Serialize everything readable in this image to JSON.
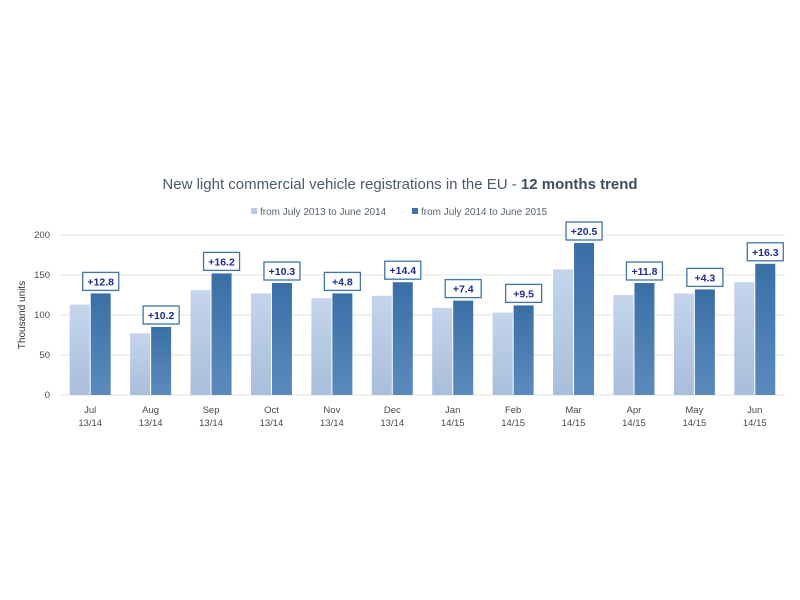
{
  "chart_data": {
    "type": "bar",
    "title": "New light commercial vehicle registrations in the EU - ",
    "title_bold": "12 months trend",
    "ylabel": "Thousand units",
    "ylim": [
      0,
      200
    ],
    "yticks": [
      0,
      50,
      100,
      150,
      200
    ],
    "grid": true,
    "legend_position": "top-center",
    "categories": [
      "Jul",
      "Aug",
      "Sep",
      "Oct",
      "Nov",
      "Dec",
      "Jan",
      "Feb",
      "Mar",
      "Apr",
      "May",
      "Jun"
    ],
    "sub_categories": [
      "13/14",
      "13/14",
      "13/14",
      "13/14",
      "13/14",
      "13/14",
      "14/15",
      "14/15",
      "14/15",
      "14/15",
      "14/15",
      "14/15"
    ],
    "series": [
      {
        "name": "from July 2013 to June 2014",
        "color": "#b7cbe6",
        "values": [
          113,
          77,
          131,
          127,
          121,
          124,
          109,
          103,
          157,
          125,
          127,
          141
        ]
      },
      {
        "name": "from July 2014 to June 2015",
        "color": "#3f74a8",
        "values": [
          127,
          85,
          152,
          140,
          127,
          141,
          118,
          112,
          190,
          140,
          132,
          164
        ]
      }
    ],
    "change_labels": [
      "+12.8",
      "+10.2",
      "+16.2",
      "+10.3",
      "+4.8",
      "+14.4",
      "+7.4",
      "+9.5",
      "+20.5",
      "+11.8",
      "+4.3",
      "+16.3"
    ]
  }
}
